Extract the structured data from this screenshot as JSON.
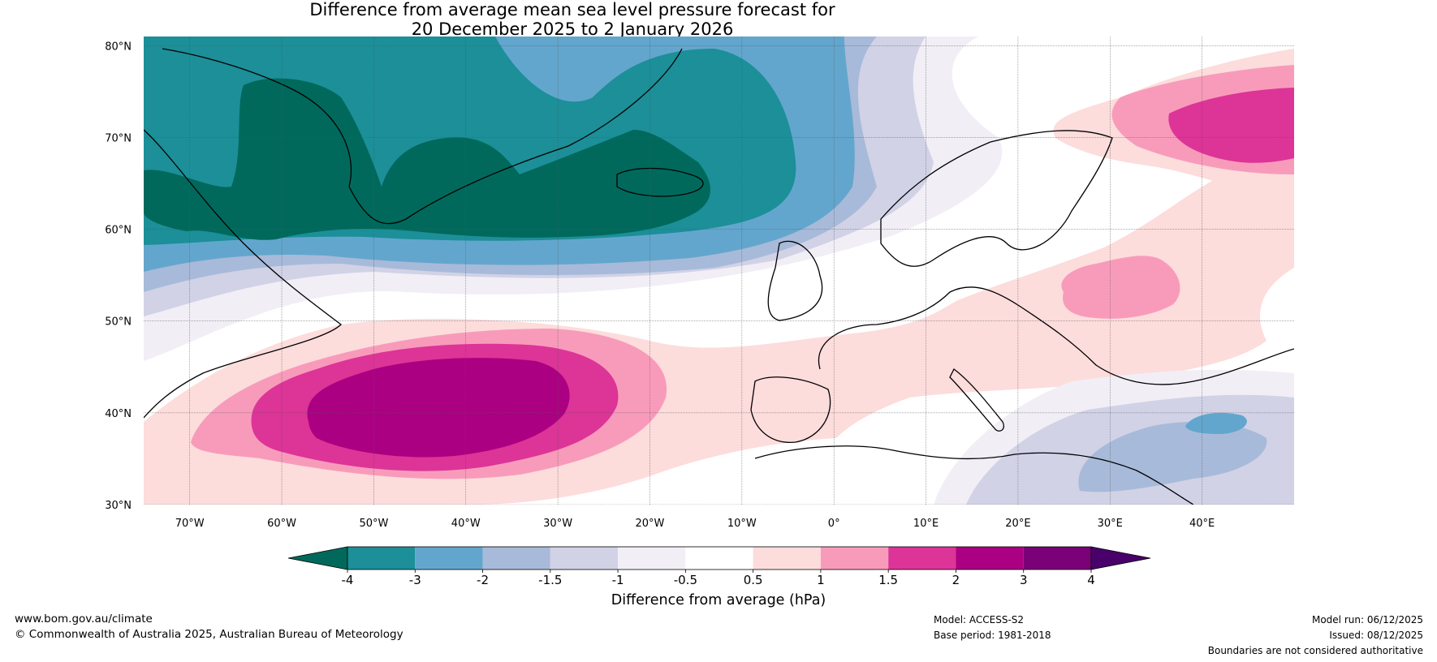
{
  "title": {
    "line1": "Difference from average mean sea level pressure forecast for",
    "line2": "20 December 2025 to 2 January 2026"
  },
  "map": {
    "lat_labels": [
      "80°N",
      "70°N",
      "60°N",
      "50°N",
      "40°N",
      "30°N"
    ],
    "lat_values": [
      80,
      70,
      60,
      50,
      40,
      30
    ],
    "lon_labels": [
      "70°W",
      "60°W",
      "50°W",
      "40°W",
      "30°W",
      "20°W",
      "10°W",
      "0°",
      "10°E",
      "20°E",
      "30°E",
      "40°E"
    ],
    "lon_values": [
      -70,
      -60,
      -50,
      -40,
      -30,
      -20,
      -10,
      0,
      10,
      20,
      30,
      40
    ],
    "extent": {
      "lon_min": -75,
      "lon_max": 50,
      "lat_min": 30,
      "lat_max": 81
    },
    "anomaly_regions": [
      {
        "name": "greenland-low-core",
        "level": "-4",
        "color": "#00695c"
      },
      {
        "name": "atlantic-high-core",
        "level": "3",
        "color": "#ab0082"
      },
      {
        "name": "barents-high",
        "level": "2",
        "color": "#dd3497"
      },
      {
        "name": "eastern-europe-high",
        "level": "1",
        "color": "#f89bbb"
      },
      {
        "name": "mediterranean-low",
        "level": "-2",
        "color": "#63a6cd"
      }
    ]
  },
  "colorbar": {
    "colors": [
      "#00695c",
      "#1c8f98",
      "#63a6cd",
      "#a8bad9",
      "#d1d2e6",
      "#f1eef6",
      "#ffffff",
      "#fddcdc",
      "#f89bbb",
      "#dd3497",
      "#ab0082",
      "#7a0177",
      "#49006a"
    ],
    "tick_labels": [
      "-4",
      "-3",
      "-2",
      "-1.5",
      "-1",
      "-0.5",
      "0.5",
      "1",
      "1.5",
      "2",
      "3",
      "4"
    ],
    "label": "Difference from average (hPa)"
  },
  "footer": {
    "website": "www.bom.gov.au/climate",
    "copyright": "© Commonwealth of Australia 2025, Australian Bureau of Meteorology",
    "model": "Model: ACCESS-S2",
    "base_period": "Base period: 1981-2018",
    "model_run": "Model run: 06/12/2025",
    "issued": "Issued: 08/12/2025",
    "disclaimer": "Boundaries are not considered authoritative"
  }
}
